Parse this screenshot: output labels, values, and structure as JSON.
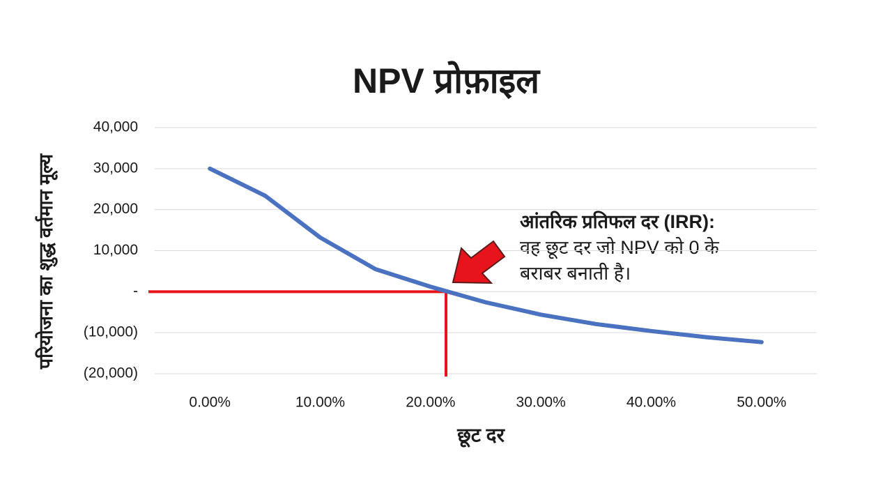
{
  "chart_data": {
    "type": "line",
    "title": "NPV प्रोफ़ाइल",
    "x_label": "छूट दर",
    "y_label": "परियोजना का शुद्ध वर्तमान मूल्य",
    "x": [
      0,
      0.05,
      0.1,
      0.15,
      0.2,
      0.25,
      0.3,
      0.35,
      0.4,
      0.45,
      0.5
    ],
    "series": [
      {
        "name": "NPV",
        "color": "#4a72c0",
        "values": [
          30000,
          23400,
          13200,
          5500,
          1200,
          -2600,
          -5600,
          -7900,
          -9600,
          -11100,
          -12300
        ]
      }
    ],
    "xlim": [
      -0.05,
      0.55
    ],
    "xticks": [
      {
        "value": 0,
        "label": "0.00%"
      },
      {
        "value": 0.1,
        "label": "10.00%"
      },
      {
        "value": 0.2,
        "label": "20.00%"
      },
      {
        "value": 0.3,
        "label": "30.00%"
      },
      {
        "value": 0.4,
        "label": "40.00%"
      },
      {
        "value": 0.5,
        "label": "50.00%"
      }
    ],
    "ylim": [
      -20000,
      40000
    ],
    "yticks": [
      {
        "value": -20000,
        "label": "(20,000)"
      },
      {
        "value": -10000,
        "label": "(10,000)"
      },
      {
        "value": 0,
        "label": "-"
      },
      {
        "value": 10000,
        "label": "10,000"
      },
      {
        "value": 20000,
        "label": "20,000"
      },
      {
        "value": 30000,
        "label": "30,000"
      },
      {
        "value": 40000,
        "label": "40,000"
      }
    ],
    "grid": true,
    "irr_line": {
      "x": 0.214,
      "y": 0,
      "color": "#e8141b"
    },
    "annotation": {
      "heading": "आंतरिक प्रतिफल दर (IRR):",
      "lines": [
        "वह छूट दर जो NPV को 0 के",
        "बराबर बनाती है।"
      ]
    }
  }
}
